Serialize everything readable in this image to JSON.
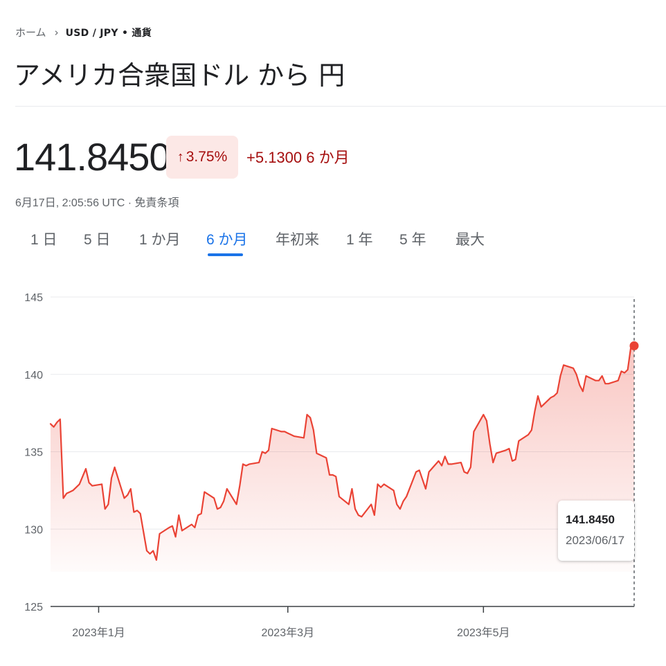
{
  "breadcrumb": {
    "home": "ホーム",
    "current": "USD / JPY • 通貨"
  },
  "title": "アメリカ合衆国ドル から 円",
  "quote": {
    "price": "141.8450",
    "change_pct": "3.75%",
    "change_abs": "+5.1300 6 か月",
    "timestamp": "6月17日, 2:05:56 UTC · 免責条項"
  },
  "tabs": [
    {
      "label": "1 日",
      "active": false
    },
    {
      "label": "5 日",
      "active": false
    },
    {
      "label": "1 か月",
      "active": false
    },
    {
      "label": "6 か月",
      "active": true
    },
    {
      "label": "年初来",
      "active": false
    },
    {
      "label": "1 年",
      "active": false
    },
    {
      "label": "5 年",
      "active": false
    },
    {
      "label": "最大",
      "active": false
    }
  ],
  "tooltip": {
    "value": "141.8450",
    "date": "2023/06/17"
  },
  "colors": {
    "line": "#ea4335",
    "negative_text": "#a50e0e",
    "badge_bg": "#fce8e6",
    "active_tab": "#1a73e8"
  },
  "chart_data": {
    "type": "area",
    "ylim": [
      125,
      145
    ],
    "yticks": [
      145,
      140,
      135,
      130,
      125
    ],
    "xticks": [
      {
        "label": "2023年1月",
        "date": "2023-01-01"
      },
      {
        "label": "2023年3月",
        "date": "2023-03-01"
      },
      {
        "label": "2023年5月",
        "date": "2023-05-01"
      }
    ],
    "xlim": [
      "2022-12-17",
      "2023-06-17"
    ],
    "series": [
      {
        "points": [
          [
            "2022-12-17",
            136.8
          ],
          [
            "2022-12-18",
            136.6
          ],
          [
            "2022-12-19",
            136.9
          ],
          [
            "2022-12-20",
            137.1
          ],
          [
            "2022-12-21",
            132.0
          ],
          [
            "2022-12-22",
            132.3
          ],
          [
            "2022-12-23",
            132.4
          ],
          [
            "2022-12-24",
            132.5
          ],
          [
            "2022-12-26",
            132.9
          ],
          [
            "2022-12-28",
            133.9
          ],
          [
            "2022-12-29",
            133.0
          ],
          [
            "2022-12-30",
            132.8
          ],
          [
            "2023-01-02",
            132.9
          ],
          [
            "2023-01-03",
            131.3
          ],
          [
            "2023-01-04",
            131.6
          ],
          [
            "2023-01-05",
            133.3
          ],
          [
            "2023-01-06",
            134.0
          ],
          [
            "2023-01-09",
            132.0
          ],
          [
            "2023-01-10",
            132.2
          ],
          [
            "2023-01-11",
            132.6
          ],
          [
            "2023-01-12",
            131.1
          ],
          [
            "2023-01-13",
            131.2
          ],
          [
            "2023-01-14",
            131.0
          ],
          [
            "2023-01-16",
            128.6
          ],
          [
            "2023-01-17",
            128.4
          ],
          [
            "2023-01-18",
            128.6
          ],
          [
            "2023-01-19",
            128.0
          ],
          [
            "2023-01-20",
            129.7
          ],
          [
            "2023-01-23",
            130.1
          ],
          [
            "2023-01-24",
            130.2
          ],
          [
            "2023-01-25",
            129.5
          ],
          [
            "2023-01-26",
            130.9
          ],
          [
            "2023-01-27",
            129.9
          ],
          [
            "2023-01-30",
            130.3
          ],
          [
            "2023-01-31",
            130.1
          ],
          [
            "2023-02-01",
            130.9
          ],
          [
            "2023-02-02",
            131.0
          ],
          [
            "2023-02-03",
            132.4
          ],
          [
            "2023-02-06",
            132.0
          ],
          [
            "2023-02-07",
            131.3
          ],
          [
            "2023-02-08",
            131.4
          ],
          [
            "2023-02-09",
            131.8
          ],
          [
            "2023-02-10",
            132.6
          ],
          [
            "2023-02-13",
            131.6
          ],
          [
            "2023-02-14",
            132.8
          ],
          [
            "2023-02-15",
            134.2
          ],
          [
            "2023-02-16",
            134.1
          ],
          [
            "2023-02-17",
            134.2
          ],
          [
            "2023-02-20",
            134.3
          ],
          [
            "2023-02-21",
            135.0
          ],
          [
            "2023-02-22",
            134.9
          ],
          [
            "2023-02-23",
            135.1
          ],
          [
            "2023-02-24",
            136.5
          ],
          [
            "2023-02-27",
            136.3
          ],
          [
            "2023-02-28",
            136.3
          ],
          [
            "2023-03-01",
            136.2
          ],
          [
            "2023-03-02",
            136.1
          ],
          [
            "2023-03-03",
            136.0
          ],
          [
            "2023-03-06",
            135.9
          ],
          [
            "2023-03-07",
            137.4
          ],
          [
            "2023-03-08",
            137.2
          ],
          [
            "2023-03-09",
            136.4
          ],
          [
            "2023-03-10",
            134.9
          ],
          [
            "2023-03-13",
            134.6
          ],
          [
            "2023-03-14",
            133.5
          ],
          [
            "2023-03-15",
            133.5
          ],
          [
            "2023-03-16",
            133.4
          ],
          [
            "2023-03-17",
            132.1
          ],
          [
            "2023-03-20",
            131.6
          ],
          [
            "2023-03-21",
            132.6
          ],
          [
            "2023-03-22",
            131.3
          ],
          [
            "2023-03-23",
            130.9
          ],
          [
            "2023-03-24",
            130.8
          ],
          [
            "2023-03-27",
            131.6
          ],
          [
            "2023-03-28",
            130.9
          ],
          [
            "2023-03-29",
            132.9
          ],
          [
            "2023-03-30",
            132.7
          ],
          [
            "2023-03-31",
            132.9
          ],
          [
            "2023-04-03",
            132.5
          ],
          [
            "2023-04-04",
            131.6
          ],
          [
            "2023-04-05",
            131.3
          ],
          [
            "2023-04-06",
            131.8
          ],
          [
            "2023-04-07",
            132.1
          ],
          [
            "2023-04-10",
            133.7
          ],
          [
            "2023-04-11",
            133.8
          ],
          [
            "2023-04-12",
            133.2
          ],
          [
            "2023-04-13",
            132.6
          ],
          [
            "2023-04-14",
            133.7
          ],
          [
            "2023-04-17",
            134.4
          ],
          [
            "2023-04-18",
            134.1
          ],
          [
            "2023-04-19",
            134.7
          ],
          [
            "2023-04-20",
            134.2
          ],
          [
            "2023-04-21",
            134.2
          ],
          [
            "2023-04-24",
            134.3
          ],
          [
            "2023-04-25",
            133.7
          ],
          [
            "2023-04-26",
            133.6
          ],
          [
            "2023-04-27",
            134.0
          ],
          [
            "2023-04-28",
            136.3
          ],
          [
            "2023-05-01",
            137.4
          ],
          [
            "2023-05-02",
            137.0
          ],
          [
            "2023-05-03",
            135.5
          ],
          [
            "2023-05-04",
            134.3
          ],
          [
            "2023-05-05",
            134.9
          ],
          [
            "2023-05-08",
            135.1
          ],
          [
            "2023-05-09",
            135.2
          ],
          [
            "2023-05-10",
            134.4
          ],
          [
            "2023-05-11",
            134.5
          ],
          [
            "2023-05-12",
            135.7
          ],
          [
            "2023-05-15",
            136.1
          ],
          [
            "2023-05-16",
            136.4
          ],
          [
            "2023-05-17",
            137.6
          ],
          [
            "2023-05-18",
            138.6
          ],
          [
            "2023-05-19",
            137.9
          ],
          [
            "2023-05-22",
            138.5
          ],
          [
            "2023-05-23",
            138.6
          ],
          [
            "2023-05-24",
            138.8
          ],
          [
            "2023-05-25",
            139.9
          ],
          [
            "2023-05-26",
            140.6
          ],
          [
            "2023-05-29",
            140.4
          ],
          [
            "2023-05-30",
            140.0
          ],
          [
            "2023-05-31",
            139.3
          ],
          [
            "2023-06-01",
            138.9
          ],
          [
            "2023-06-02",
            139.9
          ],
          [
            "2023-06-05",
            139.6
          ],
          [
            "2023-06-06",
            139.6
          ],
          [
            "2023-06-07",
            139.9
          ],
          [
            "2023-06-08",
            139.4
          ],
          [
            "2023-06-09",
            139.4
          ],
          [
            "2023-06-12",
            139.6
          ],
          [
            "2023-06-13",
            140.2
          ],
          [
            "2023-06-14",
            140.1
          ],
          [
            "2023-06-15",
            140.3
          ],
          [
            "2023-06-16",
            141.8
          ],
          [
            "2023-06-17",
            141.8
          ]
        ]
      }
    ],
    "last_point": {
      "date": "2023-06-17",
      "value": 141.845
    }
  }
}
